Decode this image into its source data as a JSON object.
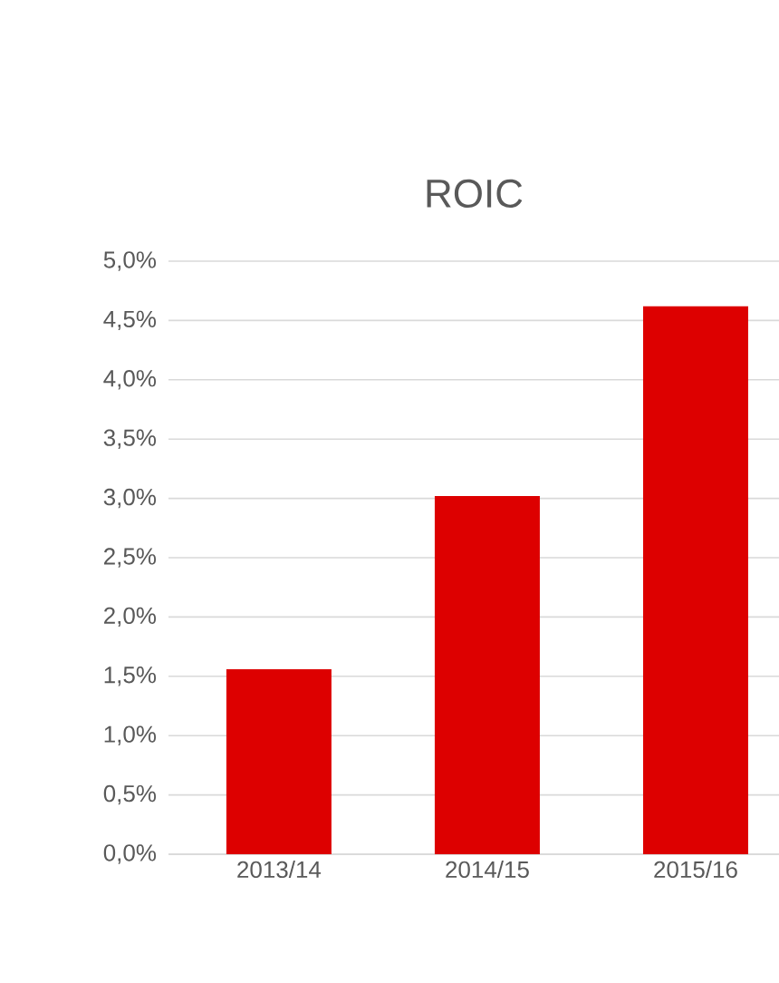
{
  "chart_data": {
    "type": "bar",
    "title": "ROIC",
    "categories": [
      "2013/14",
      "2014/15",
      "2015/16"
    ],
    "values": [
      1.56,
      3.02,
      4.62
    ],
    "color": "#dd0000",
    "ylim": [
      0,
      5
    ],
    "yticks": [
      {
        "value": 0,
        "label": "0,0%"
      },
      {
        "value": 0.5,
        "label": "0,5%"
      },
      {
        "value": 1,
        "label": "1,0%"
      },
      {
        "value": 1.5,
        "label": "1,5%"
      },
      {
        "value": 2,
        "label": "2,0%"
      },
      {
        "value": 2.5,
        "label": "2,5%"
      },
      {
        "value": 3,
        "label": "3,0%"
      },
      {
        "value": 3.5,
        "label": "3,5%"
      },
      {
        "value": 4,
        "label": "4,0%"
      },
      {
        "value": 4.5,
        "label": "4,5%"
      },
      {
        "value": 5,
        "label": "5,0%"
      }
    ],
    "grid": "y"
  }
}
